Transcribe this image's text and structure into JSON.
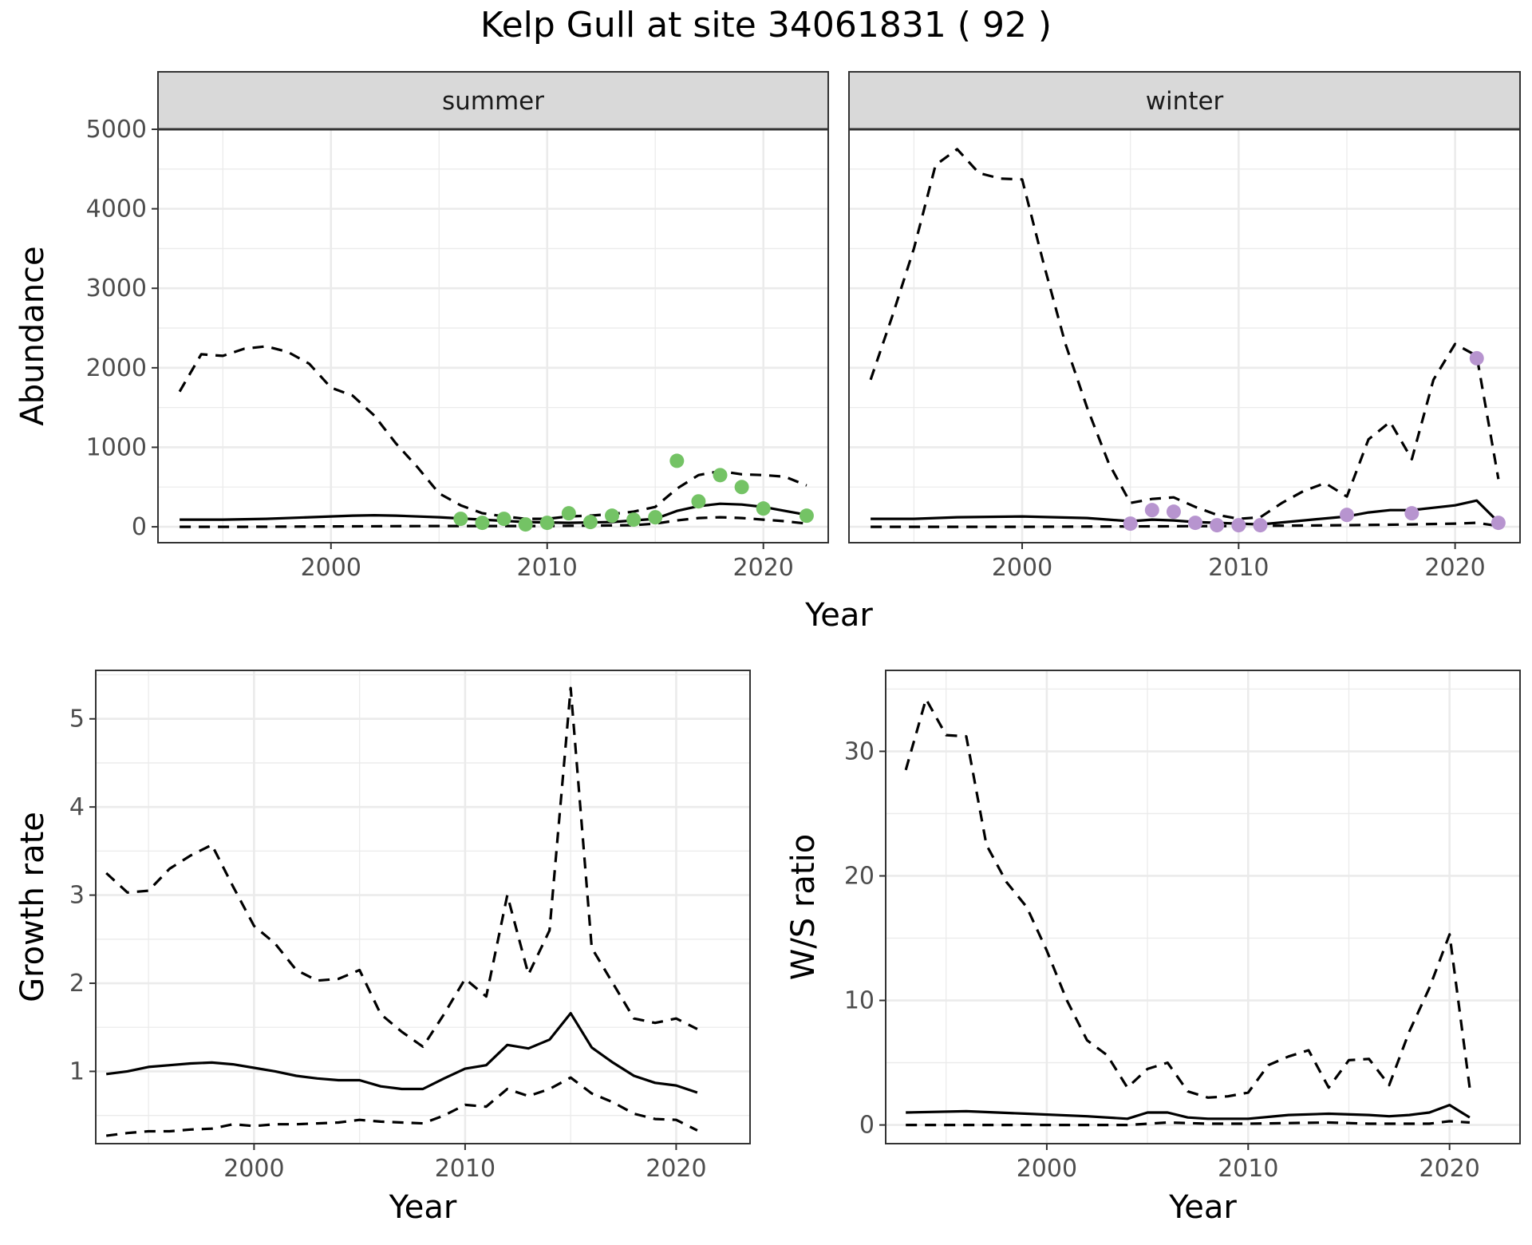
{
  "title": "Kelp Gull at site 34061831 ( 92 )",
  "colors": {
    "summer_points": "#74c365",
    "winter_points": "#b794cf",
    "lines": "#000000",
    "strip_bg": "#d9d9d9",
    "grid": "#ebebeb"
  },
  "chart_data": [
    {
      "type": "line",
      "panel": "summer",
      "facet_label": "summer",
      "ylabel": "Abundance",
      "xlabel": "Year",
      "shared_xlabel_with": "winter",
      "xlim": [
        1992,
        2023
      ],
      "ylim": [
        -200,
        5000
      ],
      "xticks": [
        2000,
        2010,
        2020
      ],
      "yticks": [
        0,
        1000,
        2000,
        3000,
        4000,
        5000
      ],
      "grid": true,
      "series": [
        {
          "role": "estimate",
          "style": "solid",
          "x": [
            1993,
            1995,
            1997,
            1999,
            2001,
            2002,
            2003,
            2005,
            2007,
            2009,
            2011,
            2013,
            2015,
            2016,
            2017,
            2018,
            2019,
            2020,
            2021,
            2022
          ],
          "y": [
            90,
            90,
            100,
            120,
            140,
            145,
            140,
            120,
            90,
            60,
            50,
            60,
            100,
            200,
            260,
            290,
            280,
            250,
            200,
            150
          ]
        },
        {
          "role": "upper",
          "style": "dashed",
          "x": [
            1993,
            1994,
            1995,
            1996,
            1997,
            1998,
            1999,
            2000,
            2001,
            2002,
            2003,
            2004,
            2005,
            2006,
            2007,
            2008,
            2009,
            2010,
            2011,
            2012,
            2013,
            2014,
            2015,
            2016,
            2017,
            2018,
            2019,
            2020,
            2021,
            2022
          ],
          "y": [
            1700,
            2170,
            2150,
            2240,
            2270,
            2200,
            2050,
            1750,
            1650,
            1400,
            1050,
            750,
            420,
            270,
            170,
            130,
            100,
            100,
            130,
            140,
            160,
            190,
            250,
            480,
            650,
            700,
            660,
            650,
            630,
            520
          ]
        },
        {
          "role": "lower",
          "style": "dashed",
          "x": [
            1993,
            1996,
            2000,
            2005,
            2010,
            2014,
            2015,
            2016,
            2017,
            2018,
            2019,
            2020,
            2021,
            2022
          ],
          "y": [
            0,
            0,
            5,
            10,
            10,
            20,
            40,
            80,
            110,
            120,
            110,
            90,
            70,
            40
          ]
        }
      ],
      "points": {
        "x": [
          2006,
          2007,
          2008,
          2009,
          2010,
          2011,
          2012,
          2013,
          2014,
          2015,
          2016,
          2017,
          2018,
          2019,
          2020,
          2022
        ],
        "y": [
          100,
          50,
          100,
          30,
          50,
          170,
          60,
          140,
          90,
          120,
          830,
          320,
          650,
          500,
          230,
          140
        ]
      }
    },
    {
      "type": "line",
      "panel": "winter",
      "facet_label": "winter",
      "xlabel": "Year",
      "xlim": [
        1992,
        2023
      ],
      "ylim": [
        -200,
        5000
      ],
      "xticks": [
        2000,
        2010,
        2020
      ],
      "yticks": [
        0,
        1000,
        2000,
        3000,
        4000,
        5000
      ],
      "grid": true,
      "series": [
        {
          "role": "estimate",
          "style": "solid",
          "x": [
            1993,
            1995,
            1997,
            2000,
            2003,
            2005,
            2006,
            2007,
            2008,
            2009,
            2010,
            2011,
            2013,
            2015,
            2016,
            2017,
            2018,
            2019,
            2020,
            2021,
            2022
          ],
          "y": [
            100,
            100,
            120,
            130,
            110,
            70,
            90,
            80,
            60,
            50,
            40,
            30,
            80,
            130,
            180,
            210,
            210,
            240,
            270,
            330,
            60
          ]
        },
        {
          "role": "upper",
          "style": "dashed",
          "x": [
            1993,
            1994,
            1995,
            1996,
            1997,
            1998,
            1999,
            2000,
            2001,
            2002,
            2003,
            2004,
            2005,
            2006,
            2007,
            2008,
            2009,
            2010,
            2011,
            2012,
            2013,
            2014,
            2015,
            2016,
            2017,
            2018,
            2019,
            2020,
            2021,
            2022
          ],
          "y": [
            1850,
            2650,
            3500,
            4550,
            4750,
            4450,
            4380,
            4370,
            3300,
            2300,
            1500,
            800,
            300,
            350,
            370,
            250,
            150,
            100,
            120,
            300,
            450,
            550,
            380,
            1100,
            1320,
            850,
            1850,
            2300,
            2150,
            600
          ]
        },
        {
          "role": "lower",
          "style": "dashed",
          "x": [
            1993,
            2000,
            2005,
            2010,
            2015,
            2018,
            2020,
            2021,
            2022
          ],
          "y": [
            0,
            0,
            5,
            10,
            20,
            30,
            40,
            50,
            10
          ]
        }
      ],
      "points": {
        "x": [
          2005,
          2006,
          2007,
          2008,
          2009,
          2010,
          2011,
          2015,
          2018,
          2021,
          2022
        ],
        "y": [
          40,
          210,
          190,
          50,
          20,
          20,
          20,
          150,
          170,
          2120,
          50
        ]
      }
    },
    {
      "type": "line",
      "panel": "growth",
      "ylabel": "Growth rate",
      "xlabel": "Year",
      "xlim": [
        1992.5,
        2023.5
      ],
      "ylim": [
        0.18,
        5.55
      ],
      "xticks": [
        2000,
        2010,
        2020
      ],
      "yticks": [
        1,
        2,
        3,
        4,
        5
      ],
      "grid": true,
      "series": [
        {
          "role": "estimate",
          "style": "solid",
          "x": [
            1993,
            1994,
            1995,
            1996,
            1997,
            1998,
            1999,
            2000,
            2001,
            2002,
            2003,
            2004,
            2005,
            2006,
            2007,
            2008,
            2009,
            2010,
            2011,
            2012,
            2013,
            2014,
            2015,
            2016,
            2017,
            2018,
            2019,
            2020,
            2021
          ],
          "y": [
            0.97,
            1.0,
            1.05,
            1.07,
            1.09,
            1.1,
            1.08,
            1.04,
            1.0,
            0.95,
            0.92,
            0.9,
            0.9,
            0.83,
            0.8,
            0.8,
            0.92,
            1.03,
            1.07,
            1.3,
            1.26,
            1.36,
            1.66,
            1.27,
            1.1,
            0.95,
            0.87,
            0.84,
            0.76
          ]
        },
        {
          "role": "upper",
          "style": "dashed",
          "x": [
            1993,
            1994,
            1995,
            1996,
            1997,
            1998,
            1999,
            2000,
            2001,
            2002,
            2003,
            2004,
            2005,
            2006,
            2007,
            2008,
            2009,
            2010,
            2011,
            2012,
            2013,
            2014,
            2015,
            2016,
            2017,
            2018,
            2019,
            2020,
            2021
          ],
          "y": [
            3.25,
            3.03,
            3.05,
            3.3,
            3.45,
            3.57,
            3.1,
            2.65,
            2.45,
            2.15,
            2.03,
            2.05,
            2.15,
            1.65,
            1.45,
            1.28,
            1.65,
            2.05,
            1.85,
            3.0,
            2.1,
            2.6,
            5.35,
            2.4,
            2.0,
            1.6,
            1.55,
            1.6,
            1.48
          ]
        },
        {
          "role": "lower",
          "style": "dashed",
          "x": [
            1993,
            1994,
            1995,
            1996,
            1997,
            1998,
            1999,
            2000,
            2001,
            2002,
            2003,
            2004,
            2005,
            2006,
            2007,
            2008,
            2009,
            2010,
            2011,
            2012,
            2013,
            2014,
            2015,
            2016,
            2017,
            2018,
            2019,
            2020,
            2021
          ],
          "y": [
            0.27,
            0.3,
            0.32,
            0.32,
            0.34,
            0.35,
            0.4,
            0.38,
            0.4,
            0.4,
            0.41,
            0.42,
            0.45,
            0.43,
            0.42,
            0.41,
            0.5,
            0.62,
            0.6,
            0.8,
            0.72,
            0.8,
            0.93,
            0.75,
            0.65,
            0.52,
            0.46,
            0.45,
            0.33
          ]
        }
      ]
    },
    {
      "type": "line",
      "panel": "ratio",
      "ylabel": "W/S ratio",
      "xlabel": "Year",
      "xlim": [
        1992,
        2023.5
      ],
      "ylim": [
        -1.5,
        36.5
      ],
      "xticks": [
        2000,
        2010,
        2020
      ],
      "yticks": [
        0,
        10,
        20,
        30
      ],
      "grid": true,
      "series": [
        {
          "role": "estimate",
          "style": "solid",
          "x": [
            1993,
            1996,
            1999,
            2002,
            2004,
            2005,
            2006,
            2007,
            2008,
            2010,
            2012,
            2014,
            2016,
            2017,
            2018,
            2019,
            2020,
            2021
          ],
          "y": [
            1.0,
            1.1,
            0.9,
            0.7,
            0.5,
            1.0,
            1.0,
            0.6,
            0.5,
            0.5,
            0.8,
            0.9,
            0.8,
            0.7,
            0.8,
            1.0,
            1.6,
            0.6
          ]
        },
        {
          "role": "upper",
          "style": "dashed",
          "x": [
            1993,
            1994,
            1995,
            1996,
            1997,
            1998,
            1999,
            2000,
            2001,
            2002,
            2003,
            2004,
            2005,
            2006,
            2007,
            2008,
            2009,
            2010,
            2011,
            2012,
            2013,
            2014,
            2015,
            2016,
            2017,
            2018,
            2019,
            2020,
            2021
          ],
          "y": [
            28.5,
            34.2,
            31.3,
            31.2,
            22.5,
            19.5,
            17.5,
            14.0,
            10.0,
            6.8,
            5.6,
            3.0,
            4.5,
            5.0,
            2.7,
            2.2,
            2.3,
            2.6,
            4.8,
            5.5,
            6.0,
            3.0,
            5.2,
            5.3,
            3.2,
            7.5,
            11.0,
            15.3,
            3.0
          ]
        },
        {
          "role": "lower",
          "style": "dashed",
          "x": [
            1993,
            2000,
            2004,
            2006,
            2008,
            2010,
            2014,
            2016,
            2019,
            2020,
            2021
          ],
          "y": [
            0.0,
            0.0,
            0.0,
            0.2,
            0.1,
            0.1,
            0.2,
            0.1,
            0.1,
            0.3,
            0.2
          ]
        }
      ]
    }
  ]
}
